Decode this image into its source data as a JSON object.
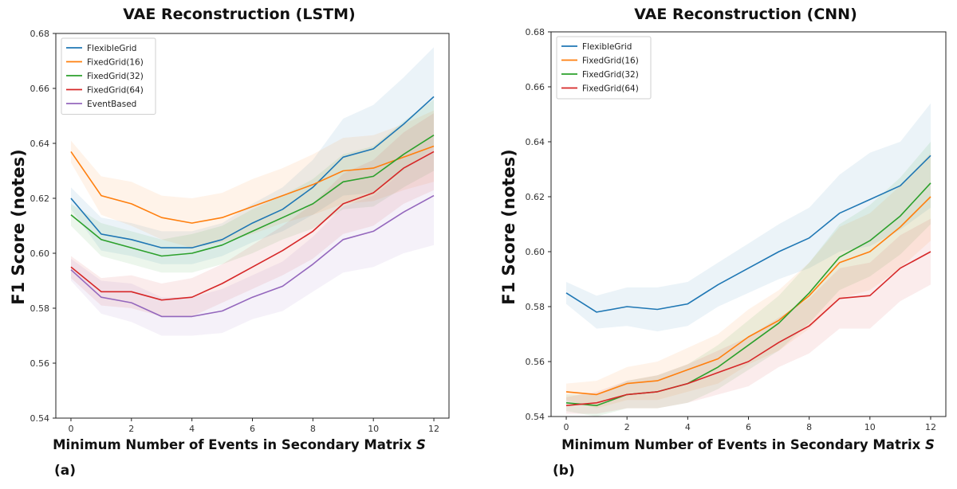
{
  "chart_data": [
    {
      "type": "line",
      "panel_label": "(a)",
      "title": "VAE Reconstruction (LSTM)",
      "xlabel": "Minimum Number of Events in Secondary Matrix",
      "xlabel_symbol": "S",
      "ylabel": "F1 Score (notes)",
      "xlim": [
        -0.5,
        12.5
      ],
      "ylim": [
        0.54,
        0.68
      ],
      "xticks": [
        0,
        2,
        4,
        6,
        8,
        10,
        12
      ],
      "yticks": [
        0.54,
        0.56,
        0.58,
        0.6,
        0.62,
        0.64,
        0.66,
        0.68
      ],
      "ytick_labels": [
        "0.54",
        "0.56",
        "0.58",
        "0.60",
        "0.62",
        "0.64",
        "0.66",
        "0.68"
      ],
      "legend_position": "top-left",
      "x": [
        0,
        1,
        2,
        3,
        4,
        5,
        6,
        7,
        8,
        9,
        10,
        11,
        12
      ],
      "series": [
        {
          "name": "FlexibleGrid",
          "color": "#1f77b4",
          "values": [
            0.62,
            0.607,
            0.605,
            0.602,
            0.602,
            0.605,
            0.611,
            0.616,
            0.624,
            0.635,
            0.638,
            0.647,
            0.657
          ],
          "band": [
            0.004,
            0.006,
            0.006,
            0.006,
            0.006,
            0.006,
            0.007,
            0.008,
            0.01,
            0.014,
            0.016,
            0.017,
            0.018
          ]
        },
        {
          "name": "FixedGrid(16)",
          "color": "#ff7f0e",
          "values": [
            0.637,
            0.621,
            0.618,
            0.613,
            0.611,
            0.613,
            0.617,
            0.621,
            0.625,
            0.63,
            0.631,
            0.635,
            0.639
          ],
          "band": [
            0.004,
            0.007,
            0.008,
            0.008,
            0.009,
            0.009,
            0.01,
            0.01,
            0.011,
            0.012,
            0.012,
            0.012,
            0.013
          ]
        },
        {
          "name": "FixedGrid(32)",
          "color": "#2ca02c",
          "values": [
            0.614,
            0.605,
            0.602,
            0.599,
            0.6,
            0.603,
            0.608,
            0.613,
            0.618,
            0.626,
            0.628,
            0.636,
            0.643
          ],
          "band": [
            0.004,
            0.006,
            0.006,
            0.006,
            0.007,
            0.007,
            0.008,
            0.008,
            0.009,
            0.01,
            0.011,
            0.012,
            0.013
          ]
        },
        {
          "name": "FixedGrid(64)",
          "color": "#d62728",
          "values": [
            0.595,
            0.586,
            0.586,
            0.583,
            0.584,
            0.589,
            0.595,
            0.601,
            0.608,
            0.618,
            0.622,
            0.631,
            0.637
          ],
          "band": [
            0.004,
            0.005,
            0.006,
            0.006,
            0.007,
            0.007,
            0.008,
            0.009,
            0.01,
            0.011,
            0.012,
            0.013,
            0.014
          ]
        },
        {
          "name": "EventBased",
          "color": "#9467bd",
          "values": [
            0.594,
            0.584,
            0.582,
            0.577,
            0.577,
            0.579,
            0.584,
            0.588,
            0.596,
            0.605,
            0.608,
            0.615,
            0.621
          ],
          "band": [
            0.004,
            0.006,
            0.007,
            0.007,
            0.007,
            0.008,
            0.008,
            0.009,
            0.01,
            0.012,
            0.013,
            0.015,
            0.018
          ]
        }
      ]
    },
    {
      "type": "line",
      "panel_label": "(b)",
      "title": "VAE Reconstruction (CNN)",
      "xlabel": "Minimum Number of Events in Secondary Matrix",
      "xlabel_symbol": "S",
      "ylabel": "F1 Score (notes)",
      "xlim": [
        -0.5,
        12.5
      ],
      "ylim": [
        0.54,
        0.68
      ],
      "xticks": [
        0,
        2,
        4,
        6,
        8,
        10,
        12
      ],
      "yticks": [
        0.54,
        0.56,
        0.58,
        0.6,
        0.62,
        0.64,
        0.66,
        0.68
      ],
      "ytick_labels": [
        "0.54",
        "0.56",
        "0.58",
        "0.60",
        "0.62",
        "0.64",
        "0.66",
        "0.68"
      ],
      "legend_position": "top-left",
      "x": [
        0,
        1,
        2,
        3,
        4,
        5,
        6,
        7,
        8,
        9,
        10,
        11,
        12
      ],
      "series": [
        {
          "name": "FlexibleGrid",
          "color": "#1f77b4",
          "values": [
            0.585,
            0.578,
            0.58,
            0.579,
            0.581,
            0.588,
            0.594,
            0.6,
            0.605,
            0.614,
            0.619,
            0.624,
            0.635
          ],
          "band": [
            0.004,
            0.006,
            0.007,
            0.008,
            0.008,
            0.008,
            0.009,
            0.01,
            0.011,
            0.014,
            0.017,
            0.016,
            0.019
          ]
        },
        {
          "name": "FixedGrid(16)",
          "color": "#ff7f0e",
          "values": [
            0.549,
            0.548,
            0.552,
            0.553,
            0.557,
            0.561,
            0.569,
            0.575,
            0.584,
            0.596,
            0.6,
            0.609,
            0.62
          ],
          "band": [
            0.003,
            0.005,
            0.006,
            0.007,
            0.008,
            0.009,
            0.01,
            0.011,
            0.012,
            0.013,
            0.014,
            0.015,
            0.016
          ]
        },
        {
          "name": "FixedGrid(32)",
          "color": "#2ca02c",
          "values": [
            0.545,
            0.544,
            0.548,
            0.549,
            0.552,
            0.558,
            0.566,
            0.574,
            0.585,
            0.598,
            0.604,
            0.613,
            0.625
          ],
          "band": [
            0.003,
            0.004,
            0.005,
            0.006,
            0.007,
            0.008,
            0.009,
            0.01,
            0.011,
            0.012,
            0.013,
            0.014,
            0.015
          ]
        },
        {
          "name": "FixedGrid(64)",
          "color": "#d62728",
          "values": [
            0.544,
            0.545,
            0.548,
            0.549,
            0.552,
            0.556,
            0.56,
            0.567,
            0.573,
            0.583,
            0.584,
            0.594,
            0.6
          ],
          "band": [
            0.003,
            0.004,
            0.005,
            0.006,
            0.007,
            0.008,
            0.009,
            0.009,
            0.01,
            0.011,
            0.012,
            0.012,
            0.012
          ]
        }
      ]
    }
  ]
}
